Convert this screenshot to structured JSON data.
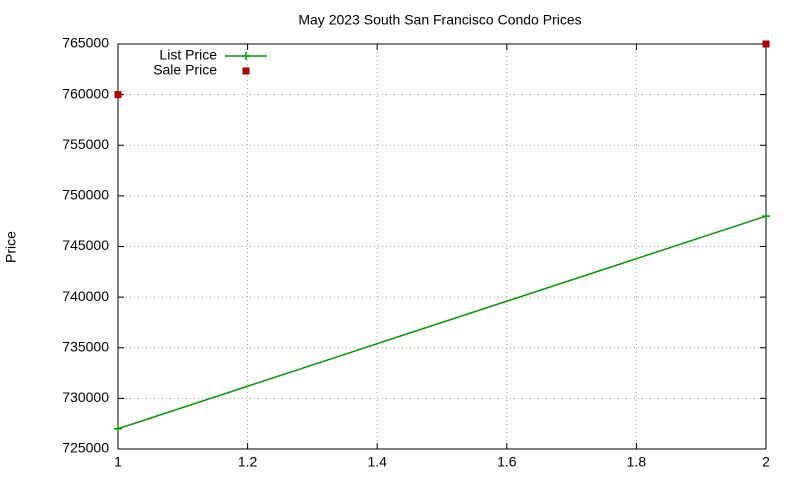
{
  "chart_data": {
    "type": "line",
    "title": "May 2023 South San Francisco Condo Prices",
    "y_label": "Price",
    "xlim": [
      1,
      2
    ],
    "xticks": [
      1,
      1.2,
      1.4,
      1.6,
      1.8,
      2
    ],
    "ylim": [
      725000,
      765000
    ],
    "yticks": [
      725000,
      730000,
      735000,
      740000,
      745000,
      750000,
      755000,
      760000,
      765000
    ],
    "grid": true,
    "legend": "top-left",
    "series": [
      {
        "name": "List Price",
        "color": "#009900",
        "style": "linespoints",
        "x": [
          1,
          2
        ],
        "values": [
          727000,
          748000
        ]
      },
      {
        "name": "Sale Price",
        "color": "#b00000",
        "style": "points",
        "x": [
          1,
          2
        ],
        "values": [
          760000,
          765000
        ]
      }
    ]
  }
}
